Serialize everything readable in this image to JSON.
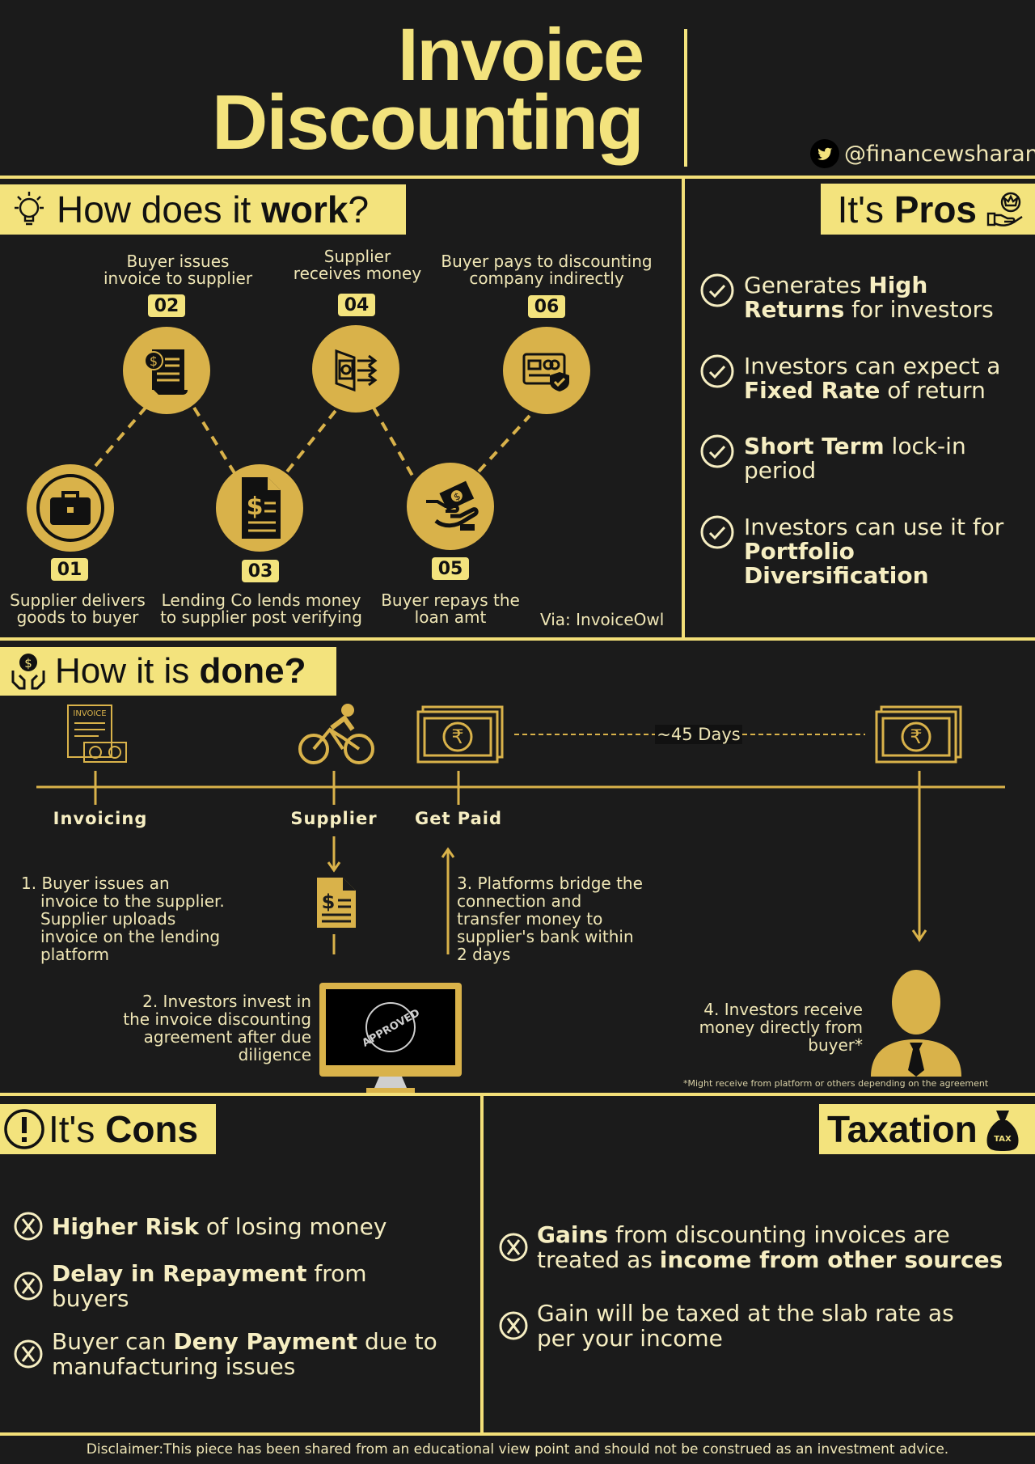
{
  "header": {
    "title_line1": "Invoice",
    "title_line2": "Discounting",
    "handle": "@financewsharan",
    "handle_icon": "twitter-icon"
  },
  "how_work": {
    "heading_pre": "How does it ",
    "heading_bold": "work",
    "heading_post": "?",
    "steps": [
      {
        "num": "01",
        "caption_l1": "Supplier delivers",
        "caption_l2": "goods to buyer",
        "icon": "briefcase-icon"
      },
      {
        "num": "02",
        "caption_l1": "Buyer issues",
        "caption_l2": "invoice to supplier",
        "icon": "invoice-icon"
      },
      {
        "num": "03",
        "caption_l1": "Lending Co lends money",
        "caption_l2": "to supplier post verifying",
        "icon": "document-dollar-icon"
      },
      {
        "num": "04",
        "caption_l1": "Supplier",
        "caption_l2": "receives money",
        "icon": "wallet-icon"
      },
      {
        "num": "05",
        "caption_l1": "Buyer repays the",
        "caption_l2": "loan amt",
        "icon": "hand-cash-icon"
      },
      {
        "num": "06",
        "caption_l1": "Buyer pays to discounting",
        "caption_l2": "company indirectly",
        "icon": "card-shield-icon"
      }
    ],
    "source": "Via: InvoiceOwl"
  },
  "pros": {
    "heading_pre": "It's ",
    "heading_bold": "Pros",
    "items": [
      {
        "a": "Generates ",
        "b": "High",
        "c": "",
        "l2b": "Returns",
        "l2": " for investors"
      },
      {
        "a": "Investors can expect a",
        "b": "",
        "c": "",
        "l2b": "Fixed Rate",
        "l2": " of return"
      },
      {
        "a": "",
        "b": "Short Term",
        "c": " lock-in",
        "l2b": "",
        "l2": "period"
      },
      {
        "a": "Investors can use it for",
        "b": "",
        "c": "",
        "l2b": "Portfolio Diversification",
        "l2": ""
      }
    ]
  },
  "how_done": {
    "heading_pre": "How it is ",
    "heading_bold": "done?",
    "labels": {
      "invoicing": "Invoicing",
      "supplier": "Supplier",
      "get_paid": "Get Paid"
    },
    "days": "~45  Days",
    "invoice_icon_text": "INVOICE",
    "approved_text": "APPROVED",
    "step1": [
      "1. Buyer issues an",
      "invoice to the supplier.",
      "Supplier uploads",
      "invoice on the lending",
      "platform"
    ],
    "step2": [
      "2. Investors invest in",
      "the invoice discounting",
      "agreement after  due",
      "diligence"
    ],
    "step3": [
      "3. Platforms bridge the",
      "connection and",
      "transfer money to",
      "supplier's bank within",
      "2 days"
    ],
    "step4": [
      "4. Investors receive",
      "money directly from",
      "buyer*"
    ],
    "footnote": "*Might receive from platform or others depending on the agreement"
  },
  "cons": {
    "heading_pre": "It's ",
    "heading_bold": "Cons",
    "items": [
      {
        "b": "Higher Risk",
        "a": " of losing money",
        "l2": ""
      },
      {
        "b": "Delay in Repayment",
        "a": " from",
        "l2": "buyers"
      },
      {
        "pre": "Buyer can ",
        "b": "Deny Payment",
        "a": " due to",
        "l2": "manufacturing issues"
      }
    ]
  },
  "taxation": {
    "heading": "Taxation",
    "tax_icon_text": "TAX",
    "item1_b": "Gains",
    "item1_a": " from discounting invoices are",
    "item1_l2a": "treated as ",
    "item1_l2b": "income from other sources",
    "item2_l1": "Gain will be taxed at the slab rate as",
    "item2_l2": "per your income"
  },
  "disclaimer": "Disclaimer:This piece has been shared from an educational view point and should not be construed as an investment advice.",
  "colors": {
    "background": "#1b1b1b",
    "accent": "#f3e37d",
    "gold": "#d9b24a",
    "text": "#f0e7b6"
  }
}
